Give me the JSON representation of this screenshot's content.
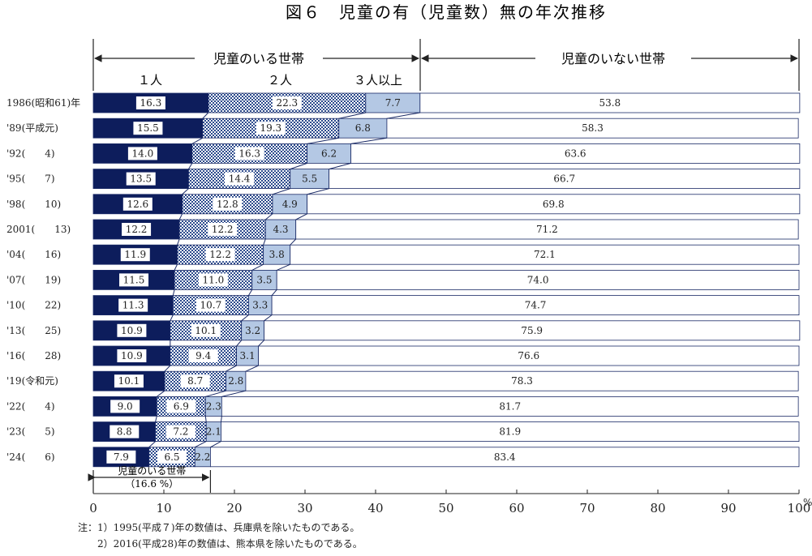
{
  "chart_data": {
    "type": "bar",
    "stacked": true,
    "orientation": "horizontal",
    "title": "図６　児童の有（児童数）無の年次推移",
    "categories": [
      "1986(昭和61)年",
      "'89(平成元)",
      "'92(　　4)",
      "'95(　　7)",
      "'98(　　10)",
      "2001(　　13)",
      "'04(　　16)",
      "'07(　　19)",
      "'10(　　22)",
      "'13(　　25)",
      "'16(　　28)",
      "'19(令和元)",
      "'22(　　4)",
      "'23(　　5)",
      "'24(　　6)"
    ],
    "series": [
      {
        "name": "１人",
        "color": "#0d1d5c",
        "values": [
          16.3,
          15.5,
          14.0,
          13.5,
          12.6,
          12.2,
          11.9,
          11.5,
          11.3,
          10.9,
          10.9,
          10.1,
          9.0,
          8.8,
          7.9
        ]
      },
      {
        "name": "２人",
        "color": "#3a5aa0",
        "values": [
          22.3,
          19.3,
          16.3,
          14.4,
          12.8,
          12.2,
          12.2,
          11.0,
          10.7,
          10.1,
          9.4,
          8.7,
          6.9,
          7.2,
          6.5
        ]
      },
      {
        "name": "３人以上",
        "color": "#b4c8e4",
        "values": [
          7.7,
          6.8,
          6.2,
          5.5,
          4.9,
          4.3,
          3.8,
          3.5,
          3.3,
          3.2,
          3.1,
          2.8,
          2.3,
          2.1,
          2.2
        ]
      },
      {
        "name": "児童のいない世帯",
        "color": "#ffffff",
        "values": [
          53.8,
          58.3,
          63.6,
          66.7,
          69.8,
          71.2,
          72.1,
          74.0,
          74.7,
          75.9,
          76.6,
          78.3,
          81.7,
          81.9,
          83.4
        ]
      }
    ],
    "value_labels": [
      [
        "16.3",
        "22.3",
        "7.7",
        "53.8"
      ],
      [
        "15.5",
        "19.3",
        "6.8",
        "58.3"
      ],
      [
        "14.0",
        "16.3",
        "6.2",
        "63.6"
      ],
      [
        "13.5",
        "14.4",
        "5.5",
        "66.7"
      ],
      [
        "12.6",
        "12.8",
        "4.9",
        "69.8"
      ],
      [
        "12.2",
        "12.2",
        "4.3",
        "71.2"
      ],
      [
        "11.9",
        "12.2",
        "3.8",
        "72.1"
      ],
      [
        "11.5",
        "11.0",
        "3.5",
        "74.0"
      ],
      [
        "11.3",
        "10.7",
        "3.3",
        "74.7"
      ],
      [
        "10.9",
        "10.1",
        "3.2",
        "75.9"
      ],
      [
        "10.9",
        "9.4",
        "3.1",
        "76.6"
      ],
      [
        "10.1",
        "8.7",
        "2.8",
        "78.3"
      ],
      [
        "9.0",
        "6.9",
        "2.3",
        "81.7"
      ],
      [
        "8.8",
        "7.2",
        "2.1",
        "81.9"
      ],
      [
        "7.9",
        "6.5",
        "2.2",
        "83.4"
      ]
    ],
    "xlim": [
      0,
      100
    ],
    "xticks": [
      "0",
      "10",
      "20",
      "30",
      "40",
      "50",
      "60",
      "70",
      "80",
      "90",
      "100"
    ],
    "xtick_unit": "%",
    "group_labels": {
      "with_children": "児童のいる世帯",
      "without_children": "児童のいない世帯"
    },
    "bottom_annotation": "児童のいる世帯",
    "bottom_annotation_value": "（16.6 %）",
    "bottom_annotation_pct": 16.6,
    "grid": false
  },
  "notes": [
    "注：1）1995(平成７)年の数値は、兵庫県を除いたものである。",
    "　　2）2016(平成28)年の数値は、熊本県を除いたものである。"
  ]
}
